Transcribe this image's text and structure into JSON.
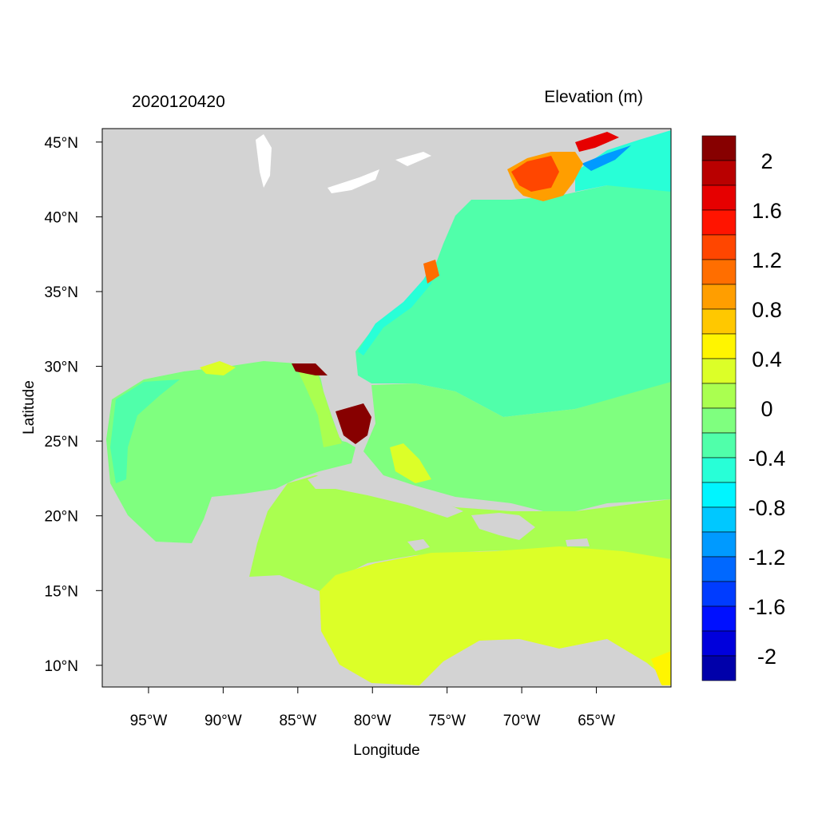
{
  "title_left": "2020120420",
  "title_right": "Elevation (m)",
  "x_axis": {
    "label": "Longitude",
    "range_deg": [
      -98.1,
      -60.0
    ],
    "ticks": [
      {
        "value": -95,
        "label": "95°W"
      },
      {
        "value": -90,
        "label": "90°W"
      },
      {
        "value": -85,
        "label": "85°W"
      },
      {
        "value": -80,
        "label": "80°W"
      },
      {
        "value": -75,
        "label": "75°W"
      },
      {
        "value": -70,
        "label": "70°W"
      },
      {
        "value": -65,
        "label": "65°W"
      }
    ]
  },
  "y_axis": {
    "label": "Latitude",
    "range_deg": [
      8.55,
      45.9
    ],
    "ticks": [
      {
        "value": 45,
        "label": "45°N"
      },
      {
        "value": 40,
        "label": "40°N"
      },
      {
        "value": 35,
        "label": "35°N"
      },
      {
        "value": 30,
        "label": "30°N"
      },
      {
        "value": 25,
        "label": "25°N"
      },
      {
        "value": 20,
        "label": "20°N"
      },
      {
        "value": 15,
        "label": "15°N"
      },
      {
        "value": 10,
        "label": "10°N"
      }
    ]
  },
  "colorbar": {
    "levels_top_to_bottom": [
      2.2,
      2.0,
      1.8,
      1.6,
      1.4,
      1.2,
      1.0,
      0.8,
      0.6,
      0.4,
      0.2,
      0.0,
      -0.2,
      -0.4,
      -0.6,
      -0.8,
      -1.0,
      -1.2,
      -1.4,
      -1.6,
      -1.8,
      -2.0,
      -2.2
    ],
    "colors_top_to_bottom": [
      "#870000",
      "#B90000",
      "#E60000",
      "#FF1400",
      "#FF4600",
      "#FF6E00",
      "#FF9E00",
      "#FFC800",
      "#FFF500",
      "#DCFF28",
      "#AAFF50",
      "#7FFF7F",
      "#50FFAA",
      "#28FFD7",
      "#00F5FF",
      "#00C8FF",
      "#009AFF",
      "#0068FF",
      "#003CFF",
      "#0010FF",
      "#0000DC",
      "#0000AA"
    ],
    "labels": [
      {
        "value": 2,
        "label": "2"
      },
      {
        "value": 1.6,
        "label": "1.6"
      },
      {
        "value": 1.2,
        "label": "1.2"
      },
      {
        "value": 0.8,
        "label": "0.8"
      },
      {
        "value": 0.4,
        "label": "0.4"
      },
      {
        "value": 0,
        "label": "0"
      },
      {
        "value": -0.4,
        "label": "-0.4"
      },
      {
        "value": -0.8,
        "label": "-0.8"
      },
      {
        "value": -1.2,
        "label": "-1.2"
      },
      {
        "value": -1.6,
        "label": "-1.6"
      },
      {
        "value": -2,
        "label": "-2"
      }
    ]
  },
  "colors": {
    "land": "#D3D3D3",
    "lakes": "#FFFFFF"
  }
}
